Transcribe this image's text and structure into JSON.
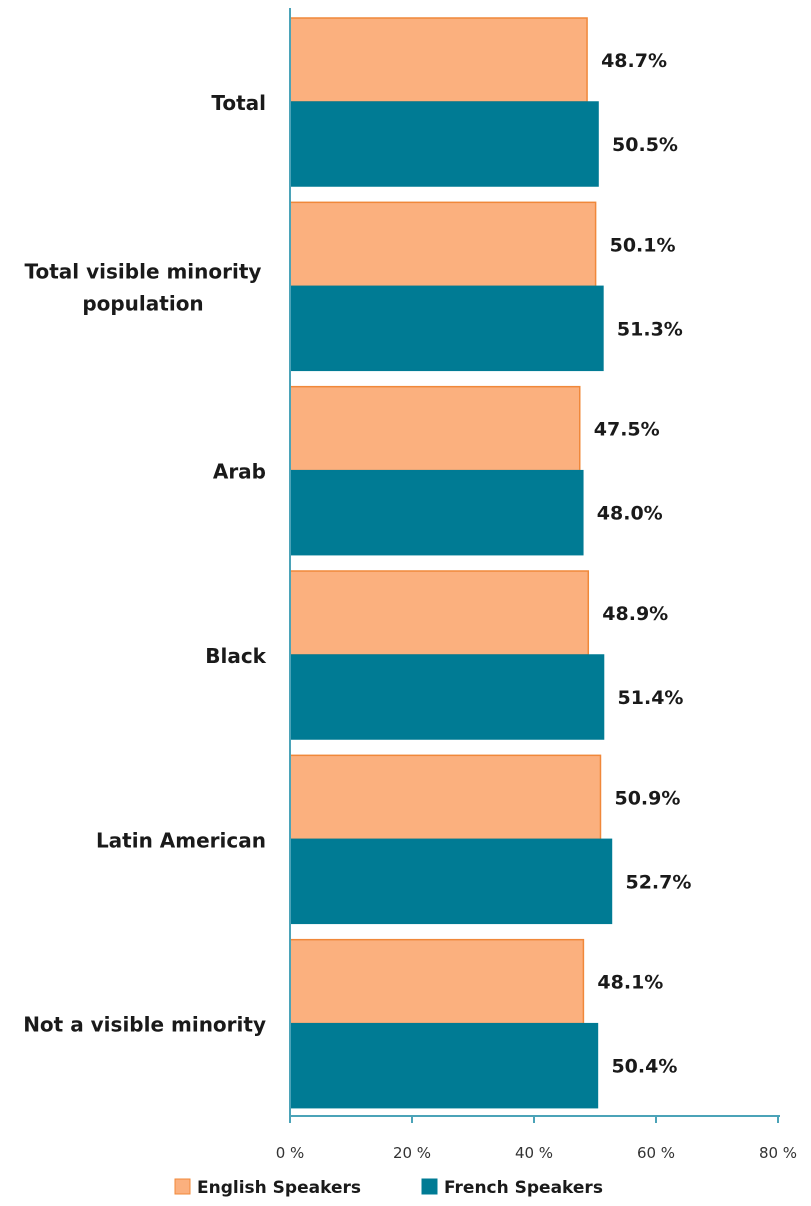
{
  "chart_data": {
    "type": "bar",
    "orientation": "horizontal",
    "categories": [
      [
        "Total"
      ],
      [
        "Total visible minority",
        "population"
      ],
      [
        "Arab"
      ],
      [
        "Black"
      ],
      [
        "Latin American"
      ],
      [
        "Not a visible minority"
      ]
    ],
    "series": [
      {
        "name": "English Speakers",
        "color": "#fbb07e",
        "stroke": "#f0883a",
        "values": [
          48.7,
          50.1,
          47.5,
          48.9,
          50.9,
          48.1
        ],
        "labels": [
          "48.7%",
          "50.1%",
          "47.5%",
          "48.9%",
          "50.9%",
          "48.1%"
        ]
      },
      {
        "name": "French Speakers",
        "color": "#007b94",
        "stroke": "#007b94",
        "values": [
          50.5,
          51.3,
          48.0,
          51.4,
          52.7,
          50.4
        ],
        "labels": [
          "50.5%",
          "51.3%",
          "48.0%",
          "51.4%",
          "52.7%",
          "50.4%"
        ]
      }
    ],
    "xlim": [
      0,
      80
    ],
    "xticks": [
      0,
      20,
      40,
      60,
      80
    ],
    "xtick_labels": [
      "0 %",
      "20 %",
      "40 %",
      "60 %",
      "80 %"
    ],
    "axis_color": "#4ba3b8",
    "grid": false,
    "legend": "bottom-center"
  }
}
